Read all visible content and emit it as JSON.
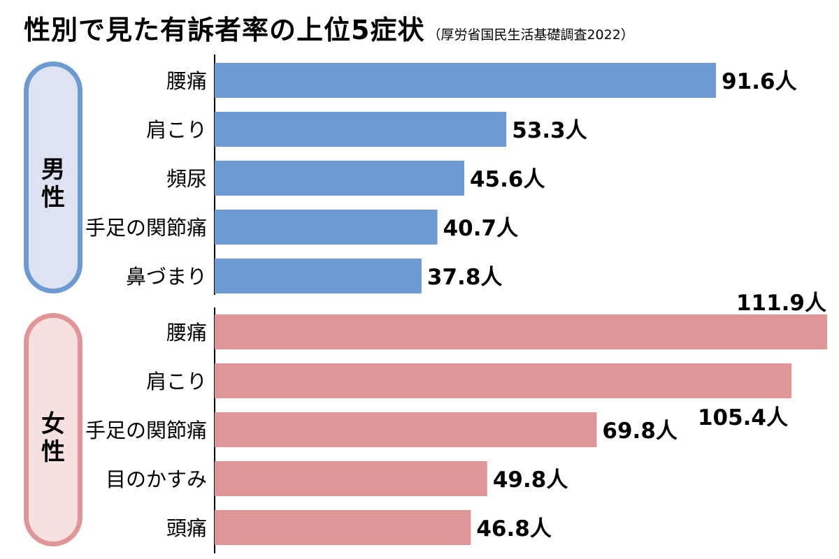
{
  "title": "性別で見た有訴者率の上位5症状",
  "source": "（厚労省国民生活基礎調査2022）",
  "colors": {
    "male_bar": "#6d9bd1",
    "male_pill_fill": "#dde3f3",
    "male_pill_border": "#6d9bd1",
    "female_bar": "#e09696",
    "female_pill_fill": "#f7e0e0",
    "female_pill_border": "#e09696"
  },
  "chart_data": [
    {
      "type": "bar",
      "orientation": "horizontal",
      "group": "男性",
      "categories": [
        "腰痛",
        "肩こり",
        "頻尿",
        "手足の関節痛",
        "鼻づまり"
      ],
      "values": [
        91.6,
        53.3,
        45.6,
        40.7,
        37.8
      ],
      "value_labels": [
        "91.6人",
        "53.3人",
        "45.6人",
        "40.7人",
        "37.8人"
      ],
      "unit": "人",
      "xlim": [
        0,
        111.9
      ]
    },
    {
      "type": "bar",
      "orientation": "horizontal",
      "group": "女性",
      "categories": [
        "腰痛",
        "肩こり",
        "手足の関節痛",
        "目のかすみ",
        "頭痛"
      ],
      "values": [
        111.9,
        105.4,
        69.8,
        49.8,
        46.8
      ],
      "value_labels": [
        "111.9人",
        "105.4人",
        "69.8人",
        "49.8人",
        "46.8人"
      ],
      "unit": "人",
      "xlim": [
        0,
        111.9
      ]
    }
  ]
}
